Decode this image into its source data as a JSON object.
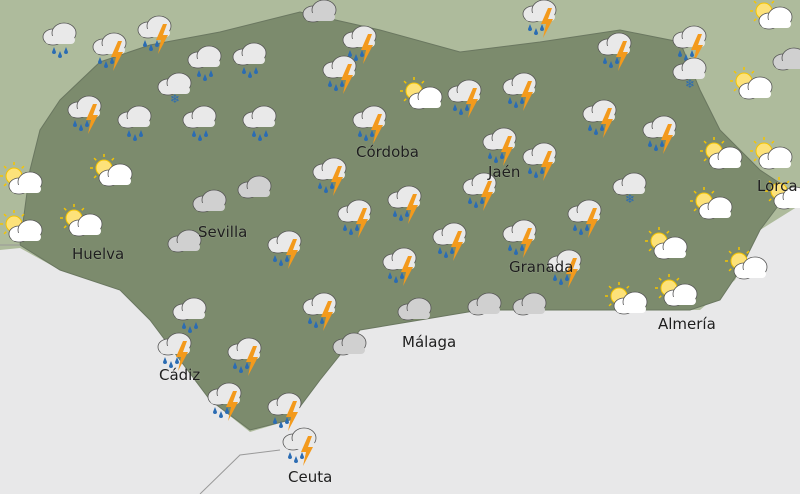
{
  "map": {
    "labels": [
      "Córdoba",
      "Jaén",
      "Sevilla",
      "Huelva",
      "Granada",
      "Almería",
      "Cádiz",
      "Málaga",
      "Ceuta",
      "Lorca"
    ]
  }
}
